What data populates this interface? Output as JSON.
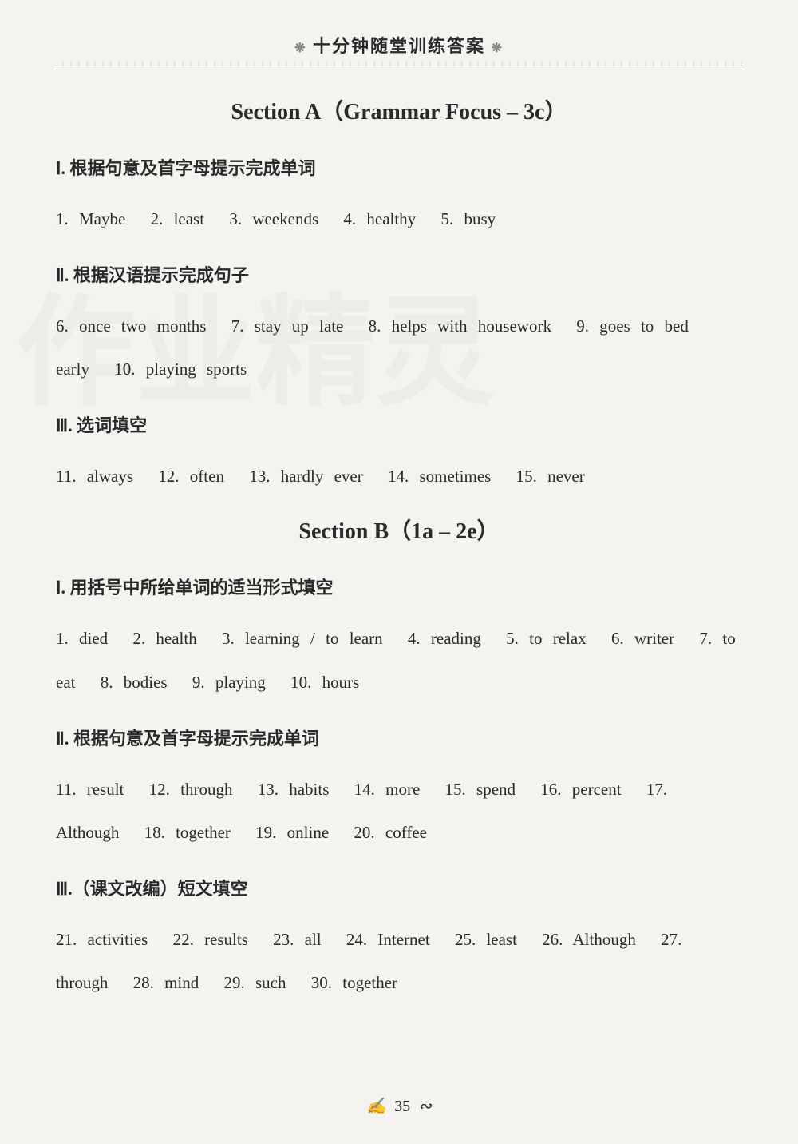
{
  "header": {
    "title": "十分钟随堂训练答案",
    "star": "❋"
  },
  "sectionA": {
    "title": "Section A（Grammar Focus – 3c）",
    "part1": {
      "heading": "Ⅰ. 根据句意及首字母提示完成单词",
      "answers": [
        "1. Maybe",
        "2. least",
        "3. weekends",
        "4. healthy",
        "5. busy"
      ]
    },
    "part2": {
      "heading": "Ⅱ. 根据汉语提示完成句子",
      "answers": [
        "6. once two months",
        "7. stay up late",
        "8. helps with housework",
        "9. goes to bed early",
        "10. playing sports"
      ]
    },
    "part3": {
      "heading": "Ⅲ. 选词填空",
      "answers": [
        "11. always",
        "12. often",
        "13. hardly ever",
        "14. sometimes",
        "15. never"
      ]
    }
  },
  "sectionB": {
    "title": "Section B（1a – 2e）",
    "part1": {
      "heading": "Ⅰ. 用括号中所给单词的适当形式填空",
      "answers": [
        "1. died",
        "2. health",
        "3. learning / to learn",
        "4. reading",
        "5. to relax",
        "6. writer",
        "7. to eat",
        "8. bodies",
        "9. playing",
        "10. hours"
      ]
    },
    "part2": {
      "heading": "Ⅱ. 根据句意及首字母提示完成单词",
      "answers": [
        "11. result",
        "12. through",
        "13. habits",
        "14. more",
        "15. spend",
        "16. percent",
        "17. Although",
        "18. together",
        "19. online",
        "20. coffee"
      ]
    },
    "part3": {
      "heading": "Ⅲ.（课文改编）短文填空",
      "answers": [
        "21. activities",
        "22. results",
        "23. all",
        "24. Internet",
        "25. least",
        "26. Although",
        "27. through",
        "28. mind",
        "29. such",
        "30. together"
      ]
    }
  },
  "pageNumber": "35",
  "watermark": "作业精灵"
}
